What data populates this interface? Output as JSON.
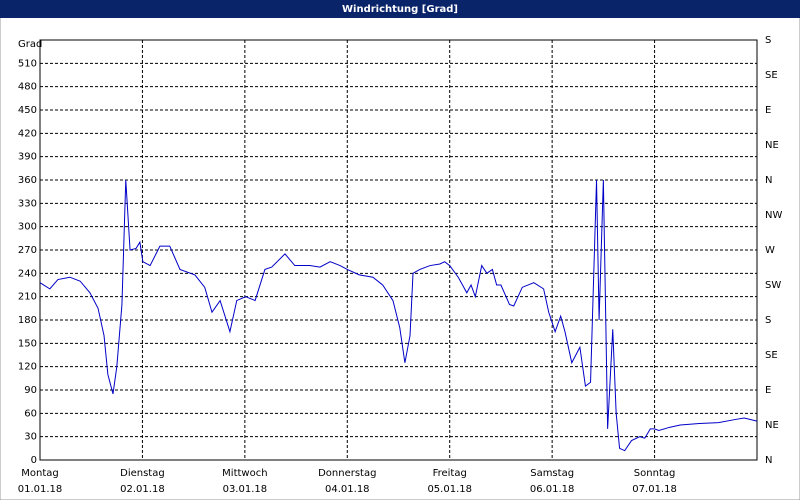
{
  "chart_data": {
    "type": "line",
    "title": "Windrichtung [Grad]",
    "y_label": "Grad",
    "x": [
      0,
      2.3,
      4.2,
      7,
      9.4,
      11.7,
      13.6,
      15,
      15.9,
      17.1,
      18,
      19.2,
      20.1,
      21.1,
      22.5,
      23.4,
      24.1,
      25.8,
      28.1,
      30.4,
      32.8,
      36.3,
      38.6,
      40.3,
      42.2,
      44.5,
      46.1,
      48.2,
      50.4,
      52.7,
      54.3,
      57.4,
      59.7,
      63.2,
      65.6,
      68,
      70.3,
      72,
      74.8,
      78,
      80.3,
      82.7,
      84.3,
      85.5,
      86.7,
      87.4,
      89,
      91.4,
      93.7,
      94.8,
      96,
      98,
      99,
      100,
      101,
      102,
      103.5,
      104.7,
      106,
      107,
      108,
      110,
      111,
      112,
      113,
      115.7,
      118,
      119.2,
      120.7,
      122,
      123,
      124.6,
      126.5,
      127.8,
      129,
      130.4,
      131,
      132,
      133,
      134.2,
      135,
      135.8,
      137,
      138.6,
      140.5,
      141.7,
      143,
      144,
      145,
      147.5,
      150,
      154.5,
      159,
      162.8,
      165,
      168
    ],
    "series": [
      {
        "name": "Windrichtung",
        "color": "#0000c8",
        "values": [
          228,
          220,
          232,
          235,
          230,
          215,
          195,
          160,
          110,
          85,
          120,
          200,
          360,
          270,
          272,
          280,
          255,
          250,
          275,
          275,
          245,
          238,
          222,
          190,
          205,
          165,
          205,
          210,
          205,
          245,
          248,
          265,
          250,
          250,
          248,
          255,
          250,
          245,
          238,
          235,
          225,
          205,
          170,
          125,
          160,
          240,
          245,
          250,
          252,
          255,
          250,
          235,
          225,
          215,
          225,
          210,
          250,
          240,
          245,
          225,
          225,
          200,
          198,
          210,
          222,
          228,
          220,
          190,
          165,
          185,
          165,
          125,
          145,
          95,
          100,
          360,
          180,
          360,
          40,
          168,
          60,
          15,
          12,
          25,
          30,
          28,
          40,
          40,
          38,
          42,
          45,
          47,
          48,
          52,
          54,
          50
        ]
      }
    ],
    "xlim": [
      0,
      168
    ],
    "xticks": [
      {
        "value": 0,
        "label": "Montag",
        "date": "01.01.18"
      },
      {
        "value": 24,
        "label": "Dienstag",
        "date": "02.01.18"
      },
      {
        "value": 48,
        "label": "Mittwoch",
        "date": "03.01.18"
      },
      {
        "value": 72,
        "label": "Donnerstag",
        "date": "04.01.18"
      },
      {
        "value": 96,
        "label": "Freitag",
        "date": "05.01.18"
      },
      {
        "value": 120,
        "label": "Samstag",
        "date": "06.01.18"
      },
      {
        "value": 144,
        "label": "Sonntag",
        "date": "07.01.18"
      }
    ],
    "ylim": [
      0,
      540
    ],
    "yticks": [
      0,
      30,
      60,
      90,
      120,
      150,
      180,
      210,
      240,
      270,
      300,
      330,
      360,
      390,
      420,
      450,
      480,
      510
    ],
    "y2lim": [
      0,
      540
    ],
    "y2ticks": [
      {
        "value": 0,
        "label": "N"
      },
      {
        "value": 45,
        "label": "NE"
      },
      {
        "value": 90,
        "label": "E"
      },
      {
        "value": 135,
        "label": "SE"
      },
      {
        "value": 180,
        "label": "S"
      },
      {
        "value": 225,
        "label": "SW"
      },
      {
        "value": 270,
        "label": "W"
      },
      {
        "value": 315,
        "label": "NW"
      },
      {
        "value": 360,
        "label": "N"
      },
      {
        "value": 405,
        "label": "NE"
      },
      {
        "value": 450,
        "label": "E"
      },
      {
        "value": 495,
        "label": "SE"
      },
      {
        "value": 540,
        "label": "S"
      }
    ],
    "grid": true
  }
}
